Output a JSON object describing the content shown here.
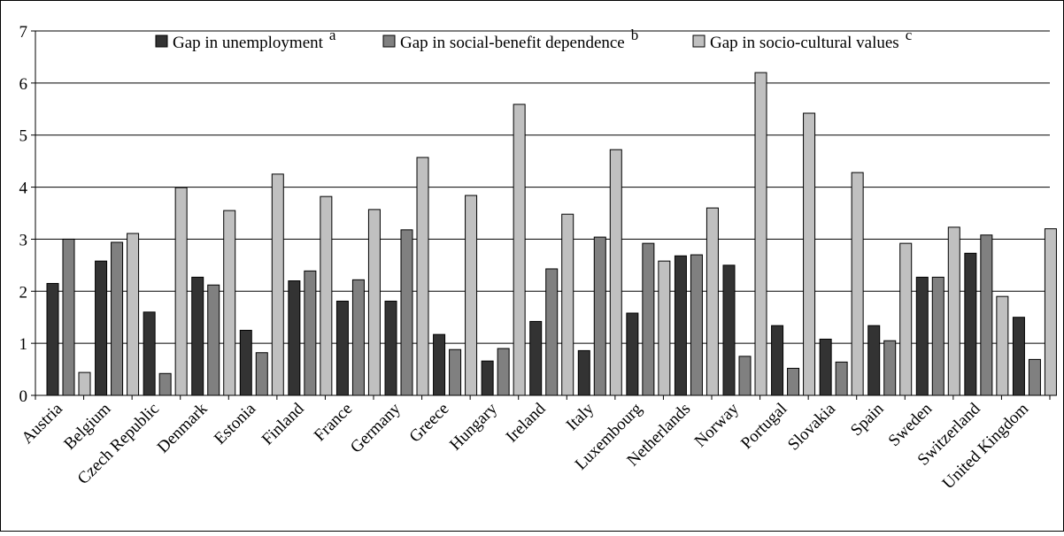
{
  "chart_data": {
    "type": "bar",
    "title": "",
    "xlabel": "",
    "ylabel": "",
    "ylim": [
      0,
      7
    ],
    "yticks": [
      0,
      1,
      2,
      3,
      4,
      5,
      6,
      7
    ],
    "grid": true,
    "legend_position": "top",
    "categories": [
      "Austria",
      "Belgium",
      "Czech Republic",
      "Denmark",
      "Estonia",
      "Finland",
      "France",
      "Germany",
      "Greece",
      "Hungary",
      "Ireland",
      "Italy",
      "Luxembourg",
      "Netherlands",
      "Norway",
      "Portugal",
      "Slovakia",
      "Spain",
      "Sweden",
      "Switzerland",
      "United Kingdom"
    ],
    "series": [
      {
        "name": "Gap in unemployment",
        "marker": "a",
        "color": "#333333",
        "values": [
          2.15,
          2.58,
          1.6,
          2.27,
          1.25,
          2.2,
          1.81,
          1.81,
          1.17,
          0.66,
          1.42,
          0.86,
          1.58,
          2.68,
          2.5,
          1.34,
          1.08,
          1.34,
          2.27,
          2.73,
          1.5
        ]
      },
      {
        "name": "Gap in social-benefit dependence",
        "marker": "b",
        "color": "#808080",
        "values": [
          3.0,
          2.94,
          0.42,
          2.12,
          0.82,
          2.39,
          2.22,
          3.18,
          0.88,
          0.9,
          2.43,
          3.04,
          2.92,
          2.7,
          0.75,
          0.52,
          0.64,
          1.05,
          2.27,
          3.08,
          0.69
        ]
      },
      {
        "name": "Gap in socio-cultural values",
        "marker": "c",
        "color": "#c0c0c0",
        "values": [
          0.44,
          3.11,
          3.99,
          3.55,
          4.25,
          3.82,
          3.57,
          4.57,
          3.84,
          5.59,
          3.48,
          4.72,
          2.58,
          3.6,
          6.2,
          5.42,
          4.28,
          2.92,
          3.23,
          1.9,
          3.2
        ]
      }
    ]
  }
}
